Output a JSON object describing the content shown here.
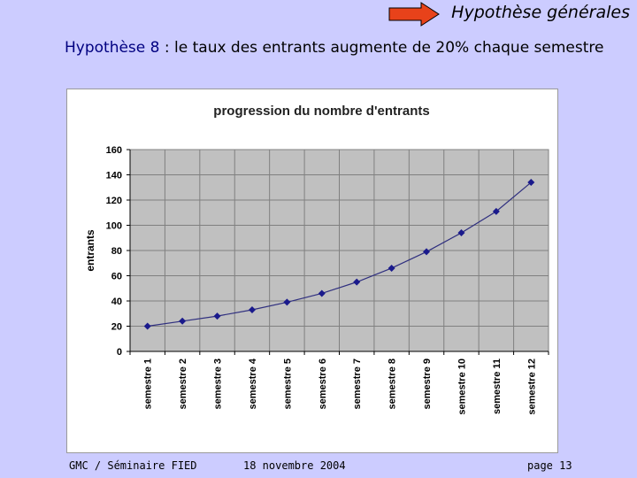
{
  "slide": {
    "title": "Hypothèse générales",
    "heading_label": "Hypothèse 8",
    "heading_text": " : le taux des entrants augmente de 20% chaque semestre",
    "arrow_color": "#e8421a"
  },
  "footer": {
    "left": "GMC  / Séminaire FIED",
    "center": "18 novembre 2004",
    "right": "page 13"
  },
  "chart_data": {
    "type": "line",
    "title": "progression du nombre d'entrants",
    "xlabel": "",
    "ylabel": "entrants",
    "categories": [
      "semestre 1",
      "semestre 2",
      "semestre 3",
      "semestre 4",
      "semestre 5",
      "semestre 6",
      "semestre 7",
      "semestre 8",
      "semestre 9",
      "semestre 10",
      "semestre 11",
      "semestre 12"
    ],
    "series": [
      {
        "values": [
          20,
          24,
          28,
          33,
          39,
          46,
          55,
          66,
          79,
          94,
          111,
          134
        ]
      }
    ],
    "ylim": [
      0,
      160
    ],
    "yticks": [
      0,
      20,
      40,
      60,
      80,
      100,
      120,
      140,
      160
    ],
    "grid": true,
    "legend": "none",
    "colors": {
      "line": "#2f2f7f",
      "marker": "#1a1a8c",
      "plot_bg": "#c0c0c0",
      "grid": "#808080"
    }
  }
}
